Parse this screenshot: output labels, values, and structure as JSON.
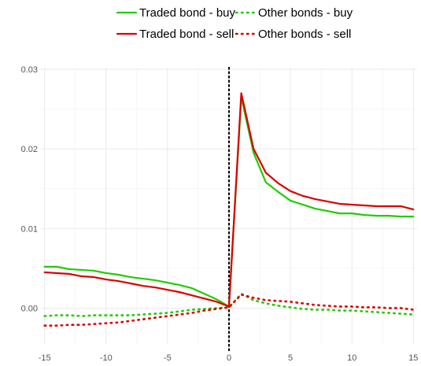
{
  "chart_data": {
    "type": "line",
    "title": "",
    "xlabel": "",
    "ylabel": "",
    "xlim": [
      -15.3,
      15.3
    ],
    "ylim": [
      -0.0045,
      0.0302
    ],
    "x_ticks": [
      -15,
      -10,
      -5,
      0,
      5,
      10,
      15
    ],
    "x_tick_labels": [
      "-15",
      "-10",
      "-5",
      "0",
      "5",
      "10",
      "15"
    ],
    "y_ticks": [
      0.0,
      0.01,
      0.02,
      0.03
    ],
    "y_tick_labels": [
      "0.00",
      "0.01",
      "0.02",
      "0.03"
    ],
    "grid": true,
    "legend_position": "top",
    "vline_x": 0,
    "x": [
      -15,
      -14,
      -13,
      -12,
      -11,
      -10,
      -9,
      -8,
      -7,
      -6,
      -5,
      -4,
      -3,
      -2,
      -1,
      0,
      1,
      2,
      3,
      4,
      5,
      6,
      7,
      8,
      9,
      10,
      11,
      12,
      13,
      14,
      15
    ],
    "series": [
      {
        "name": "Traded bond - buy",
        "color": "#22cc00",
        "style": "solid",
        "values": [
          0.0052,
          0.0052,
          0.0049,
          0.0048,
          0.0047,
          0.0044,
          0.0042,
          0.0039,
          0.0037,
          0.0035,
          0.0032,
          0.0029,
          0.0025,
          0.0018,
          0.0011,
          0.0002,
          0.0265,
          0.0195,
          0.0158,
          0.0146,
          0.0135,
          0.013,
          0.0125,
          0.0122,
          0.0119,
          0.0119,
          0.0117,
          0.0116,
          0.0116,
          0.0115,
          0.0115
        ]
      },
      {
        "name": "Traded bond - sell",
        "color": "#dd0000",
        "style": "solid",
        "values": [
          0.0045,
          0.0044,
          0.0043,
          0.004,
          0.0039,
          0.0036,
          0.0034,
          0.0031,
          0.0028,
          0.0026,
          0.0023,
          0.002,
          0.0016,
          0.0012,
          0.0008,
          0.0002,
          0.027,
          0.02,
          0.017,
          0.0157,
          0.0147,
          0.0141,
          0.0137,
          0.0134,
          0.0131,
          0.013,
          0.0129,
          0.0128,
          0.0128,
          0.0128,
          0.0124
        ]
      },
      {
        "name": "Other bonds - buy",
        "color": "#22cc00",
        "style": "dotted",
        "values": [
          -0.001,
          -0.0009,
          -0.0009,
          -0.001,
          -0.0009,
          -0.0009,
          -0.0009,
          -0.0009,
          -0.0008,
          -0.0007,
          -0.0006,
          -0.0004,
          -0.0002,
          -0.0001,
          0.0,
          0.0001,
          0.0018,
          0.001,
          0.0006,
          0.0003,
          0.0001,
          -0.0001,
          -0.0002,
          -0.0002,
          -0.0003,
          -0.0003,
          -0.0004,
          -0.0005,
          -0.0006,
          -0.0007,
          -0.0008
        ]
      },
      {
        "name": "Other bonds - sell",
        "color": "#dd0000",
        "style": "dotted",
        "values": [
          -0.0022,
          -0.0022,
          -0.0021,
          -0.0021,
          -0.002,
          -0.0019,
          -0.0018,
          -0.0016,
          -0.0014,
          -0.0012,
          -0.001,
          -0.0008,
          -0.0006,
          -0.0003,
          -0.0001,
          0.0001,
          0.0017,
          0.0013,
          0.001,
          0.0009,
          0.0008,
          0.0006,
          0.0004,
          0.0003,
          0.0002,
          0.0002,
          0.0001,
          0.0001,
          0.0,
          0.0,
          -0.0002
        ]
      }
    ]
  }
}
